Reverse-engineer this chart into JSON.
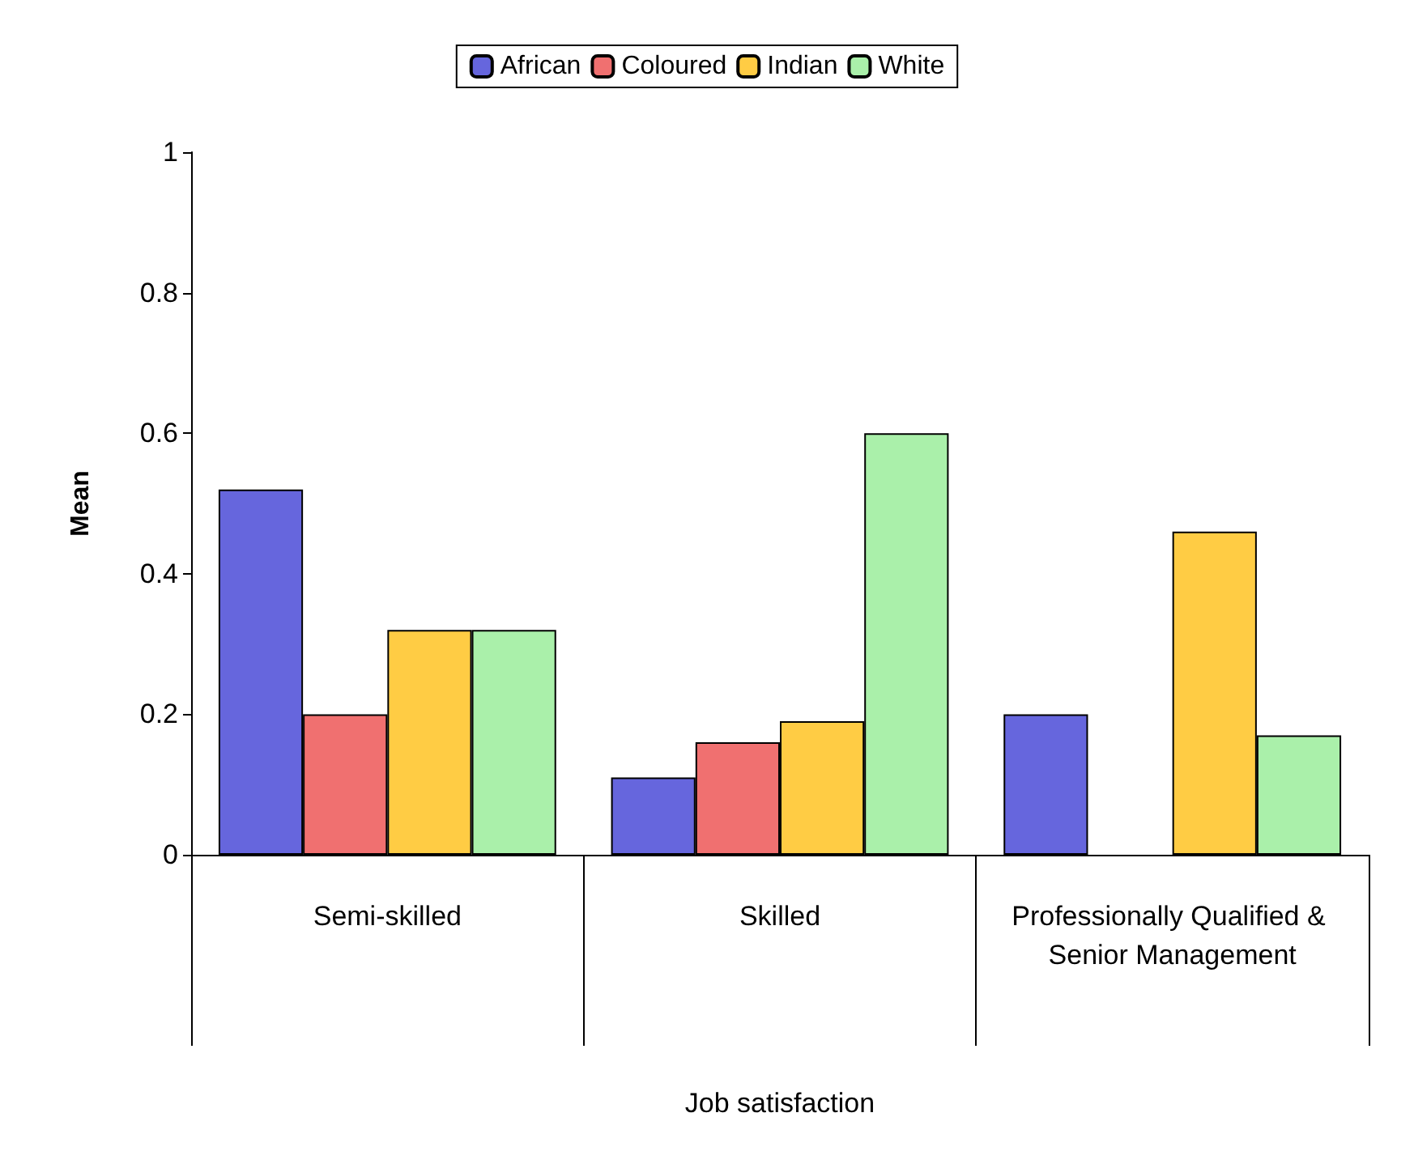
{
  "chart_data": {
    "type": "bar",
    "xlabel": "Job satisfaction",
    "ylabel": "Mean",
    "categories": [
      "Semi-skilled",
      "Skilled",
      "Professionally Qualified & Senior Management"
    ],
    "series": [
      {
        "name": "African",
        "color": "#6666dd",
        "values": [
          0.52,
          0.11,
          0.2
        ]
      },
      {
        "name": "Coloured",
        "color": "#f07070",
        "values": [
          0.2,
          0.16,
          null
        ]
      },
      {
        "name": "Indian",
        "color": "#ffcc44",
        "values": [
          0.32,
          0.19,
          0.46
        ]
      },
      {
        "name": "White",
        "color": "#aaf0aa",
        "values": [
          0.32,
          0.6,
          0.17
        ]
      }
    ],
    "ylim": [
      0,
      1
    ],
    "yticks": [
      0,
      0.2,
      0.4,
      0.6,
      0.8,
      1
    ],
    "grid": false,
    "legend": "top"
  }
}
